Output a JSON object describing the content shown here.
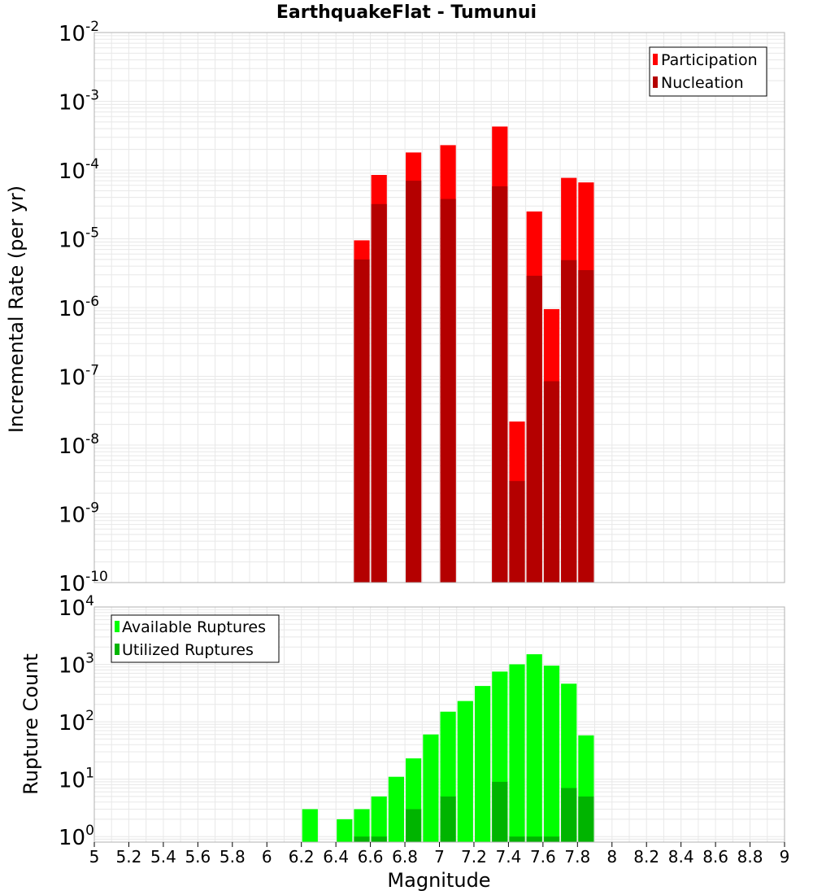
{
  "chart_data": [
    {
      "type": "bar",
      "title": "EarthquakeFlat - Tumunui",
      "xlabel": "",
      "ylabel": "Incremental Rate (per yr)",
      "yscale": "log",
      "ylim": [
        1e-10,
        0.01
      ],
      "xlim": [
        5,
        9
      ],
      "grid": true,
      "legend_position": "top-right",
      "bin_width": 0.1,
      "x": [
        6.55,
        6.65,
        6.85,
        7.05,
        7.35,
        7.45,
        7.55,
        7.65,
        7.75,
        7.85
      ],
      "series": [
        {
          "name": "Participation",
          "color": "#ff0000",
          "values": [
            9.5e-06,
            8.5e-05,
            0.00018,
            0.00023,
            0.00043,
            2.2e-08,
            2.5e-05,
            9.5e-07,
            7.7e-05,
            6.6e-05
          ]
        },
        {
          "name": "Nucleation",
          "color": "#b40000",
          "values": [
            5e-06,
            3.2e-05,
            7e-05,
            3.8e-05,
            5.8e-05,
            3e-09,
            2.9e-06,
            8.5e-08,
            4.9e-06,
            3.5e-06
          ]
        }
      ]
    },
    {
      "type": "bar",
      "title": "",
      "xlabel": "Magnitude",
      "ylabel": "Rupture Count",
      "yscale": "log",
      "ylim": [
        0.8,
        10000
      ],
      "xlim": [
        5,
        9
      ],
      "grid": true,
      "legend_position": "top-left",
      "bin_width": 0.1,
      "x": [
        6.25,
        6.45,
        6.55,
        6.65,
        6.75,
        6.85,
        6.95,
        7.05,
        7.15,
        7.25,
        7.35,
        7.45,
        7.55,
        7.65,
        7.75,
        7.85
      ],
      "series": [
        {
          "name": "Available Ruptures",
          "color": "#00ff00",
          "values": [
            3,
            2,
            3,
            5,
            11,
            23,
            60,
            150,
            230,
            420,
            750,
            1000,
            1500,
            950,
            460,
            58
          ]
        },
        {
          "name": "Utilized Ruptures",
          "color": "#00b400",
          "values": [
            null,
            null,
            1,
            1,
            null,
            3,
            null,
            5,
            null,
            null,
            9,
            1,
            1,
            1,
            7,
            5
          ]
        }
      ]
    }
  ],
  "x_ticks": [
    "5",
    "5.2",
    "5.4",
    "5.6",
    "5.8",
    "6",
    "6.2",
    "6.4",
    "6.6",
    "6.8",
    "7",
    "7.2",
    "7.4",
    "7.6",
    "7.8",
    "8",
    "8.2",
    "8.4",
    "8.6",
    "8.8",
    "9"
  ],
  "top_y_ticks": [
    -2,
    -3,
    -4,
    -5,
    -6,
    -7,
    -8,
    -9,
    -10
  ],
  "bottom_y_ticks": [
    4,
    3,
    2,
    1,
    0
  ]
}
